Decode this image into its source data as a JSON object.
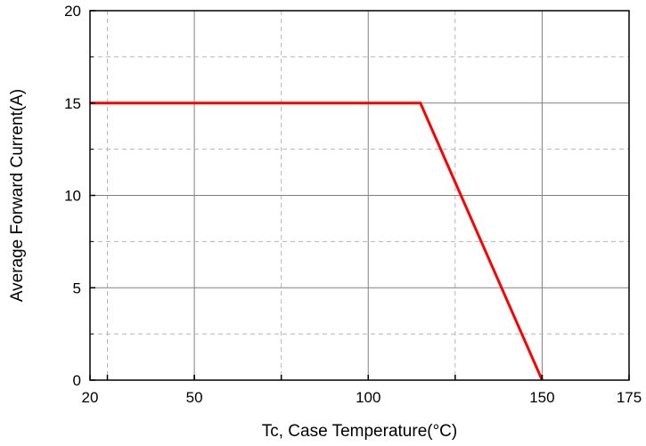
{
  "chart_data": {
    "type": "line",
    "title": "",
    "xlabel": "Tc, Case Temperature(°C)",
    "ylabel": "Average Forward Current(A)",
    "xlim": [
      20,
      175
    ],
    "ylim": [
      0,
      20
    ],
    "x_ticks": [
      20,
      50,
      100,
      150,
      175
    ],
    "x_tick_labels": [
      "20",
      "50",
      "100",
      "150",
      "175"
    ],
    "y_ticks": [
      0,
      5,
      10,
      15,
      20
    ],
    "y_tick_labels": [
      "0",
      "5",
      "10",
      "15",
      "20"
    ],
    "x_major_grid": [
      25,
      50,
      75,
      100,
      125,
      150
    ],
    "y_major_grid": [
      5,
      10,
      15
    ],
    "y_minor_grid": [
      2.5,
      7.5,
      12.5,
      17.5
    ],
    "grid": true,
    "series": [
      {
        "x": [
          20,
          115,
          150
        ],
        "y": [
          15,
          15,
          0
        ],
        "color": "#ff0000"
      }
    ]
  }
}
